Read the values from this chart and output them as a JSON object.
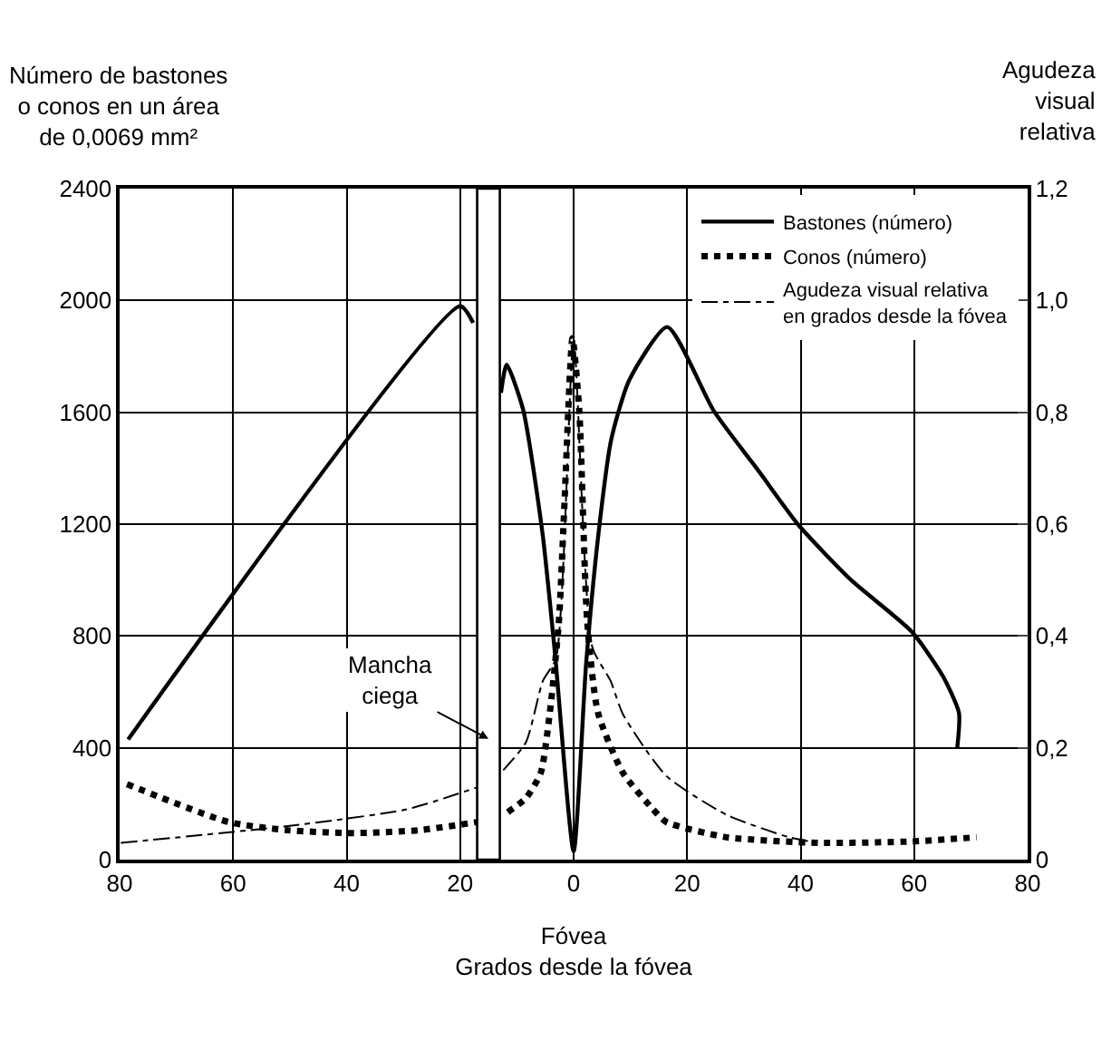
{
  "chart_data": {
    "type": "line",
    "xlabel": "Fóvea\nGrados desde la fóvea",
    "ylabel": "Número de bastones\no conos en un área\nde 0,0069 mm²",
    "y2label": "Agudeza\nvisual\nrelativa",
    "xlim": [
      -80,
      80
    ],
    "xticks": [
      {
        "value": -80,
        "label": "80"
      },
      {
        "value": -60,
        "label": "60"
      },
      {
        "value": -40,
        "label": "40"
      },
      {
        "value": -20,
        "label": "20"
      },
      0,
      20,
      40,
      60,
      80
    ],
    "ylim": [
      0,
      2400
    ],
    "yticks": [
      0,
      400,
      800,
      1200,
      1600,
      2000,
      2400
    ],
    "y2lim": [
      0,
      1.2
    ],
    "y2ticks": [
      {
        "value": 0,
        "label": "0"
      },
      {
        "value": 0.2,
        "label": "0,2"
      },
      {
        "value": 0.4,
        "label": "0,4"
      },
      {
        "value": 0.6,
        "label": "0,6"
      },
      {
        "value": 0.8,
        "label": "0,8"
      },
      {
        "value": 1.0,
        "label": "1,0"
      },
      {
        "value": 1.2,
        "label": "1,2"
      }
    ],
    "grid": true,
    "legend": "top right",
    "bands": [
      {
        "axis": "x",
        "from": -17,
        "to": -13,
        "label": "Mancha\nciega",
        "color": "#ffffff"
      }
    ],
    "series": [
      {
        "name": "Bastones (número)",
        "color": "#000000",
        "line_style": "solid",
        "x": [
          -78.5,
          -20,
          -17.7,
          -15,
          -12.8,
          -11.8,
          -8.9,
          -5.5,
          -3.3,
          0,
          2.2,
          4.4,
          6.6,
          9.8,
          16.5,
          24.7,
          32.6,
          39.7,
          48.9,
          59.6,
          65.1,
          67.9,
          67.6
        ],
        "values": [
          430,
          1980,
          1920,
          null,
          1670,
          1770,
          1610,
          1170,
          740,
          30,
          700,
          1170,
          1500,
          1715,
          1905,
          1605,
          1390,
          1195,
          1000,
          815,
          655,
          525,
          400
        ]
      },
      {
        "name": "Conos (número)",
        "color": "#000000",
        "line_style": "dotted",
        "x": [
          -78.7,
          -60.9,
          -50.4,
          -38.8,
          -27.4,
          -16.8,
          -15,
          -11.6,
          -8.4,
          -5.8,
          -4.2,
          -2.6,
          -1.6,
          -0.2,
          1,
          2.4,
          4.3,
          8.7,
          14,
          16.3,
          27,
          43.3,
          59.6,
          71
        ],
        "values": [
          270,
          135,
          105,
          95,
          105,
          135,
          null,
          170,
          220,
          310,
          525,
          850,
          1280,
          1865,
          1605,
          850,
          525,
          310,
          180,
          135,
          80,
          60,
          65,
          80
        ]
      },
      {
        "name": "Agudeza visual relativa en grados desde la fóvea",
        "color": "#000000",
        "line_style": "dashed",
        "axis": "y2",
        "x": [
          -79.8,
          -50.4,
          -29.4,
          -16.8,
          -15,
          -12.4,
          -8.4,
          -5.4,
          -3.1,
          0,
          3.3,
          6.5,
          8.7,
          16.3,
          27,
          38,
          43
        ],
        "values": [
          0.03,
          0.06,
          0.09,
          0.13,
          null,
          0.16,
          0.21,
          0.32,
          0.36,
          0.93,
          0.38,
          0.32,
          0.26,
          0.15,
          0.08,
          0.04,
          0.03
        ]
      }
    ]
  }
}
